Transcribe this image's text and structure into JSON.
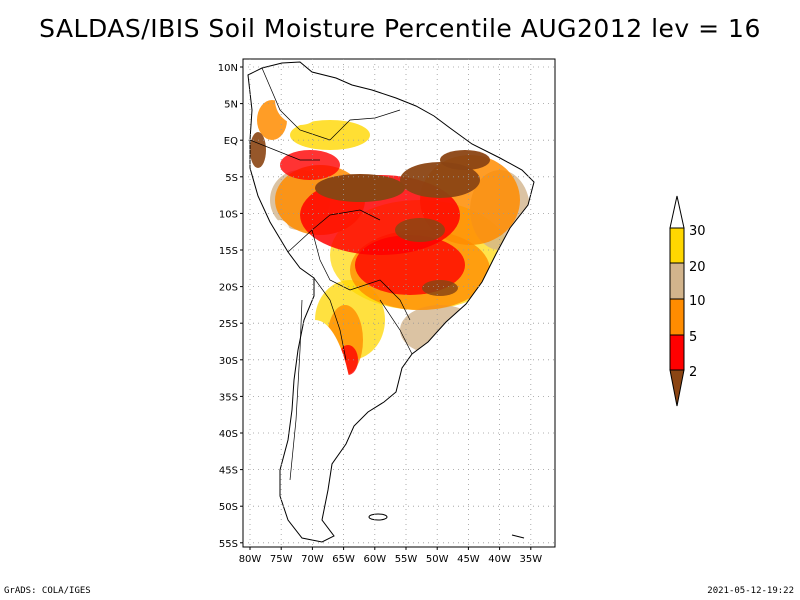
{
  "title": "SALDAS/IBIS Soil Moisture Percentile AUG2012 lev = 16",
  "footer_left": "GrADS: COLA/IGES",
  "footer_right": "2021-05-12-19:22",
  "map": {
    "region": "South America",
    "lat_labels": [
      "10N",
      "5N",
      "EQ",
      "5S",
      "10S",
      "15S",
      "20S",
      "25S",
      "30S",
      "35S",
      "40S",
      "45S",
      "50S",
      "55S"
    ],
    "lon_labels": [
      "80W",
      "75W",
      "70W",
      "65W",
      "60W",
      "55W",
      "50W",
      "45W",
      "40W",
      "35W"
    ],
    "grid": "dotted"
  },
  "colorbar": {
    "levels": [
      "2",
      "5",
      "10",
      "20",
      "30"
    ],
    "colors": [
      "#8b4513",
      "#ff0000",
      "#ff8c00",
      "#d2b48c",
      "#ffd700",
      "#ffffff"
    ]
  }
}
